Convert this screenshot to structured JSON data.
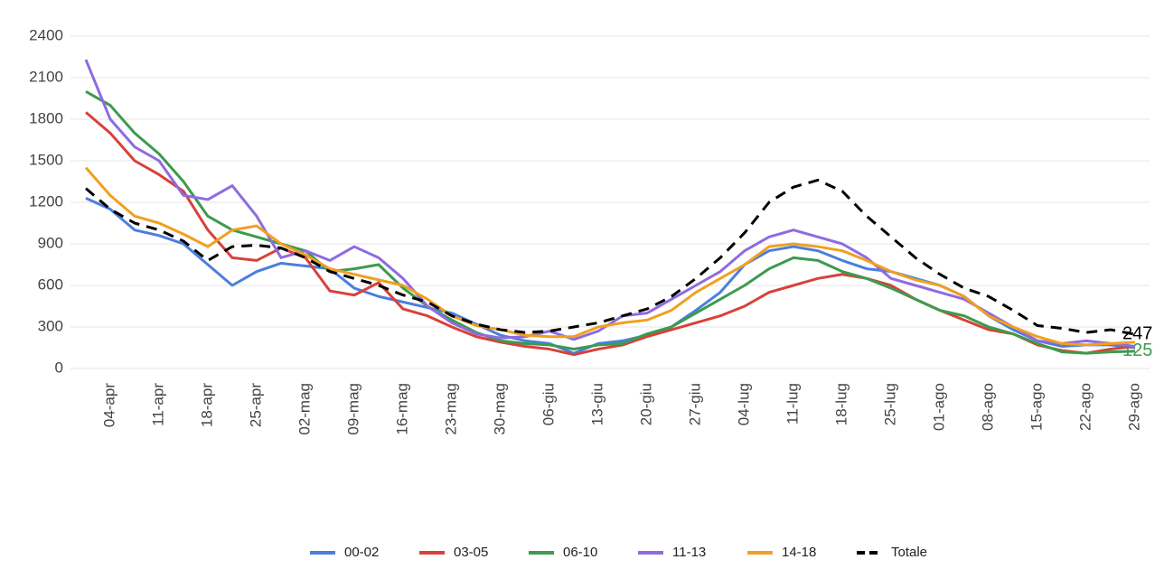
{
  "chart_data": {
    "type": "line",
    "categories": [
      null,
      "04-apr",
      null,
      "11-apr",
      null,
      "18-apr",
      null,
      "25-apr",
      null,
      "02-mag",
      null,
      "09-mag",
      null,
      "16-mag",
      null,
      "23-mag",
      null,
      "30-mag",
      null,
      "06-giu",
      null,
      "13-giu",
      null,
      "20-giu",
      null,
      "27-giu",
      null,
      "04-lug",
      null,
      "11-lug",
      null,
      "18-lug",
      null,
      "25-lug",
      null,
      "01-ago",
      null,
      "08-ago",
      null,
      "15-ago",
      null,
      "22-ago",
      null,
      "29-ago"
    ],
    "series": [
      {
        "name": "00-02",
        "color": "#4a7fdc",
        "values": [
          1230,
          1150,
          1000,
          960,
          900,
          750,
          600,
          700,
          760,
          740,
          720,
          580,
          520,
          480,
          440,
          400,
          320,
          240,
          200,
          180,
          110,
          180,
          200,
          240,
          300,
          420,
          550,
          750,
          850,
          880,
          850,
          780,
          720,
          700,
          650,
          600,
          520,
          380,
          280,
          200,
          160,
          170,
          170,
          150
        ]
      },
      {
        "name": "03-05",
        "color": "#d8413a",
        "values": [
          1850,
          1700,
          1500,
          1400,
          1280,
          1000,
          800,
          780,
          870,
          800,
          560,
          530,
          620,
          430,
          380,
          300,
          230,
          190,
          160,
          140,
          100,
          140,
          170,
          230,
          280,
          330,
          380,
          450,
          550,
          600,
          650,
          680,
          650,
          600,
          500,
          420,
          350,
          280,
          250,
          170,
          130,
          110,
          140,
          160
        ]
      },
      {
        "name": "06-10",
        "color": "#3c9b4e",
        "label_last": true,
        "values": [
          2000,
          1900,
          1700,
          1550,
          1350,
          1100,
          1000,
          950,
          900,
          850,
          700,
          720,
          750,
          580,
          450,
          350,
          260,
          200,
          180,
          170,
          140,
          170,
          180,
          250,
          300,
          400,
          500,
          600,
          720,
          800,
          780,
          700,
          650,
          580,
          500,
          420,
          380,
          300,
          250,
          180,
          120,
          110,
          120,
          125
        ]
      },
      {
        "name": "11-13",
        "color": "#8e6be0",
        "values": [
          2230,
          1800,
          1600,
          1500,
          1250,
          1220,
          1320,
          1100,
          800,
          850,
          780,
          880,
          800,
          650,
          450,
          330,
          250,
          220,
          230,
          270,
          210,
          270,
          380,
          400,
          500,
          600,
          700,
          850,
          950,
          1000,
          950,
          900,
          800,
          650,
          600,
          550,
          500,
          400,
          300,
          200,
          180,
          200,
          180,
          160
        ]
      },
      {
        "name": "14-18",
        "color": "#f0a020",
        "values": [
          1450,
          1250,
          1100,
          1050,
          970,
          880,
          1000,
          1030,
          900,
          820,
          720,
          680,
          640,
          600,
          500,
          380,
          310,
          280,
          240,
          230,
          230,
          300,
          330,
          350,
          420,
          550,
          650,
          750,
          880,
          900,
          880,
          850,
          780,
          700,
          640,
          600,
          520,
          380,
          300,
          230,
          180,
          170,
          180,
          190
        ]
      },
      {
        "name": "Totale",
        "color": "#000000",
        "dash": true,
        "label_last": true,
        "values": [
          1300,
          1150,
          1050,
          1000,
          920,
          780,
          880,
          890,
          870,
          800,
          700,
          650,
          600,
          530,
          480,
          380,
          320,
          280,
          260,
          270,
          300,
          330,
          380,
          430,
          520,
          650,
          800,
          980,
          1200,
          1310,
          1360,
          1280,
          1100,
          950,
          800,
          680,
          580,
          520,
          420,
          310,
          290,
          260,
          280,
          247
        ]
      }
    ],
    "ylim": [
      0,
      2400
    ],
    "yticks": [
      0,
      300,
      600,
      900,
      1200,
      1500,
      1800,
      2100,
      2400
    ],
    "grid": true,
    "legend": "bottom"
  }
}
